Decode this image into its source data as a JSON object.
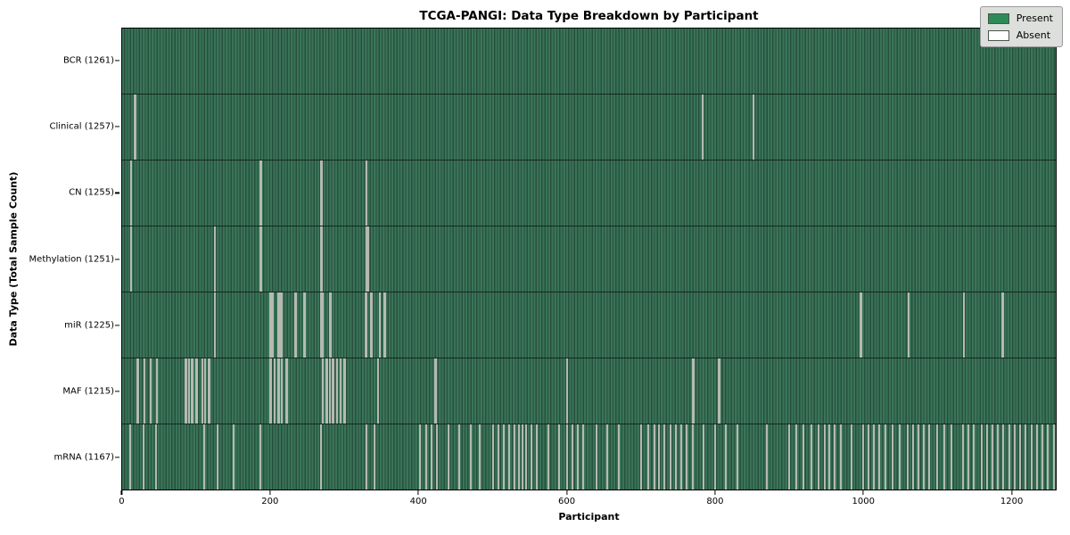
{
  "title": "TCGA-PANGI: Data Type Breakdown by Participant",
  "xlabel": "Participant",
  "ylabel": "Data Type (Total Sample Count)",
  "legend": {
    "present_label": "Present",
    "absent_label": "Absent",
    "background": "#dcdfdc"
  },
  "colors": {
    "present": "#2e8b57",
    "present_stripe_light": "#3a7458",
    "present_stripe_dark": "#27503e",
    "absent_swatch": "#ffffff",
    "absent_line": "#b4bab2",
    "plot_border": "#000000"
  },
  "chart_data": {
    "type": "heatmap",
    "title": "TCGA-PANGI: Data Type Breakdown by Participant",
    "xlabel": "Participant",
    "ylabel": "Data Type (Total Sample Count)",
    "n_participants": 1261,
    "x_ticks": [
      0,
      200,
      400,
      600,
      800,
      1000,
      1200
    ],
    "legend_position": "upper right",
    "states": [
      "Present",
      "Absent"
    ],
    "rows": [
      {
        "label": "BCR",
        "total": 1261,
        "display": "BCR (1261)",
        "absent_count": 0,
        "absent": []
      },
      {
        "label": "Clinical",
        "total": 1257,
        "display": "Clinical (1257)",
        "absent_count": 4,
        "absent": [
          16,
          17,
          784,
          852
        ]
      },
      {
        "label": "CN",
        "total": 1255,
        "display": "CN (1255)",
        "absent_count": 6,
        "absent": [
          12,
          186,
          187,
          268,
          269,
          330
        ]
      },
      {
        "label": "Methylation",
        "total": 1251,
        "display": "Methylation (1251)",
        "absent_count": 10,
        "absent": [
          12,
          125,
          186,
          187,
          268,
          269,
          329,
          330,
          331,
          332
        ]
      },
      {
        "label": "miR",
        "total": 1225,
        "display": "miR (1225)",
        "absent_count": 36,
        "absent": [
          125,
          199,
          200,
          201,
          202,
          203,
          210,
          211,
          212,
          213,
          214,
          215,
          233,
          234,
          245,
          246,
          268,
          269,
          270,
          280,
          281,
          328,
          329,
          336,
          337,
          347,
          348,
          354,
          355,
          997,
          998,
          1062,
          1136,
          1188,
          1189,
          1190
        ]
      },
      {
        "label": "MAF",
        "total": 1215,
        "display": "MAF (1215)",
        "absent_count": 46,
        "absent": [
          20,
          21,
          30,
          38,
          46,
          47,
          85,
          86,
          90,
          94,
          95,
          100,
          101,
          108,
          112,
          116,
          117,
          200,
          201,
          205,
          206,
          210,
          211,
          215,
          221,
          222,
          270,
          271,
          275,
          276,
          280,
          284,
          285,
          290,
          294,
          295,
          299,
          300,
          345,
          422,
          423,
          600,
          770,
          771,
          805,
          806
        ]
      },
      {
        "label": "mRNA",
        "total": 1167,
        "display": "mRNA (1167)",
        "absent_count": 94,
        "absent": [
          10,
          28,
          45,
          110,
          128,
          150,
          186,
          268,
          330,
          340,
          402,
          410,
          418,
          425,
          440,
          455,
          470,
          482,
          500,
          508,
          515,
          522,
          530,
          535,
          540,
          545,
          552,
          560,
          575,
          590,
          600,
          608,
          615,
          622,
          640,
          655,
          670,
          700,
          710,
          718,
          725,
          732,
          740,
          748,
          755,
          762,
          770,
          785,
          800,
          815,
          830,
          870,
          900,
          910,
          920,
          930,
          940,
          948,
          955,
          962,
          970,
          985,
          1000,
          1008,
          1015,
          1022,
          1030,
          1040,
          1050,
          1060,
          1068,
          1075,
          1082,
          1090,
          1100,
          1110,
          1120,
          1135,
          1142,
          1150,
          1160,
          1168,
          1175,
          1182,
          1190,
          1198,
          1205,
          1212,
          1220,
          1228,
          1235,
          1242,
          1250,
          1258
        ]
      }
    ]
  }
}
